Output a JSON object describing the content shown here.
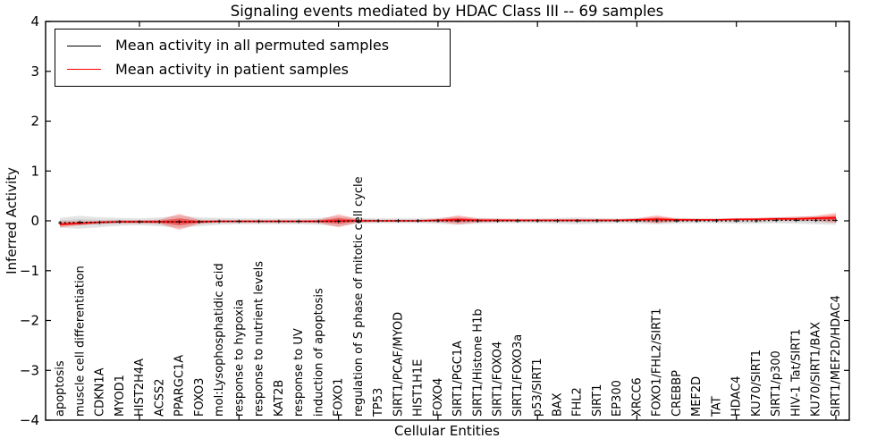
{
  "title": "Signaling events mediated by HDAC Class III -- 69 samples",
  "legend": [
    {
      "label": "Mean activity in all permuted samples",
      "color": "#000000"
    },
    {
      "label": "Mean activity in patient samples",
      "color": "#ff0000"
    }
  ],
  "chart_data": {
    "type": "line",
    "title": "Signaling events mediated by HDAC Class III -- 69 samples",
    "xlabel": "Cellular Entities",
    "ylabel": "Inferred Activity",
    "ylim": [
      -4,
      4
    ],
    "yticks": [
      -4,
      -3,
      -2,
      -1,
      0,
      1,
      2,
      3,
      4
    ],
    "grid": false,
    "legend_position": "upper left",
    "categories": [
      "apoptosis",
      "muscle cell differentiation",
      "CDKN1A",
      "MYOD1",
      "HIST2H4A",
      "ACSS2",
      "PPARGC1A",
      "FOXO3",
      "mol:Lysophosphatidic acid",
      "response to hypoxia",
      "response to nutrient levels",
      "KAT2B",
      "response to UV",
      "induction of apoptosis",
      "FOXO1",
      "regulation of S phase of mitotic cell cycle",
      "TP53",
      "SIRT1/PCAF/MYOD",
      "HIST1H1E",
      "FOXO4",
      "SIRT1/PGC1A",
      "SIRT1/Histone H1b",
      "SIRT1/FOXO4",
      "SIRT1/FOXO3a",
      "p53/SIRT1",
      "BAX",
      "FHL2",
      "SIRT1",
      "EP300",
      "XRCC6",
      "FOXO1/FHL2/SIRT1",
      "CREBBP",
      "MEF2D",
      "TAT",
      "HDAC4",
      "KU70/SIRT1",
      "SIRT1/p300",
      "HIV-1 Tat/SIRT1",
      "KU70/SIRT1/BAX",
      "SIRT1/MEF2D/HDAC4"
    ],
    "xtick_indices": [
      4,
      9,
      14,
      19,
      24,
      29,
      34,
      39
    ],
    "series": [
      {
        "name": "Mean activity in all permuted samples",
        "color": "#000000",
        "style": "dashed",
        "band_color": "#999999",
        "values": [
          -0.04,
          -0.03,
          -0.03,
          -0.02,
          -0.02,
          -0.02,
          -0.02,
          -0.02,
          -0.01,
          -0.01,
          -0.01,
          -0.01,
          -0.01,
          -0.01,
          -0.01,
          0.0,
          0.0,
          0.0,
          0.0,
          0.0,
          0.0,
          0.0,
          0.0,
          0.0,
          0.0,
          0.0,
          0.0,
          0.0,
          0.0,
          0.0,
          0.0,
          0.0,
          0.0,
          0.0,
          0.0,
          0.0,
          0.01,
          0.01,
          0.01,
          0.01
        ],
        "band_halfwidth": [
          0.1,
          0.13,
          0.1,
          0.08,
          0.07,
          0.09,
          0.12,
          0.09,
          0.07,
          0.06,
          0.06,
          0.06,
          0.06,
          0.07,
          0.1,
          0.06,
          0.05,
          0.05,
          0.05,
          0.06,
          0.08,
          0.06,
          0.05,
          0.05,
          0.05,
          0.06,
          0.07,
          0.06,
          0.05,
          0.06,
          0.07,
          0.06,
          0.05,
          0.05,
          0.06,
          0.06,
          0.06,
          0.07,
          0.08,
          0.09
        ]
      },
      {
        "name": "Mean activity in patient samples",
        "color": "#ff0000",
        "style": "solid",
        "band_color": "#ff0000",
        "values": [
          -0.07,
          -0.05,
          -0.03,
          -0.02,
          -0.02,
          -0.02,
          -0.02,
          -0.02,
          -0.01,
          -0.01,
          -0.01,
          -0.01,
          -0.01,
          -0.01,
          0.0,
          0.0,
          0.0,
          0.0,
          0.0,
          0.01,
          0.02,
          0.01,
          0.01,
          0.01,
          0.01,
          0.01,
          0.01,
          0.01,
          0.01,
          0.02,
          0.03,
          0.02,
          0.02,
          0.02,
          0.03,
          0.03,
          0.04,
          0.04,
          0.05,
          0.06
        ],
        "band_halfwidth": [
          0.06,
          0.04,
          0.03,
          0.03,
          0.03,
          0.04,
          0.16,
          0.04,
          0.02,
          0.02,
          0.02,
          0.02,
          0.02,
          0.03,
          0.13,
          0.03,
          0.02,
          0.02,
          0.02,
          0.03,
          0.09,
          0.04,
          0.03,
          0.02,
          0.02,
          0.02,
          0.02,
          0.02,
          0.02,
          0.03,
          0.08,
          0.03,
          0.02,
          0.02,
          0.02,
          0.03,
          0.03,
          0.04,
          0.05,
          0.1
        ]
      }
    ]
  }
}
